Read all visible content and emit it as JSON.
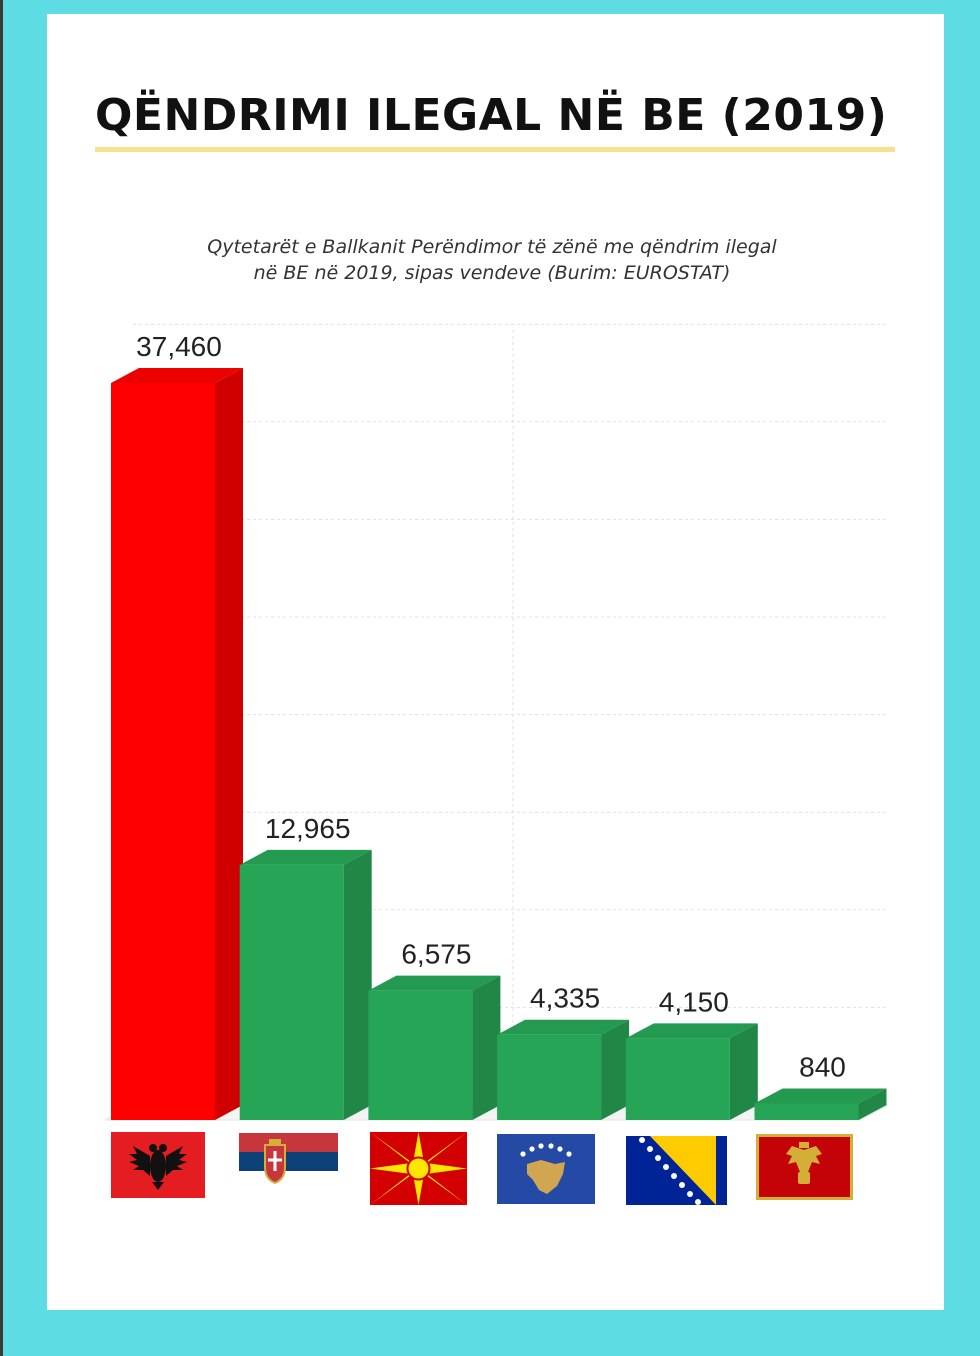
{
  "page": {
    "title": "QËNDRIMI ILEGAL NË BE (2019)",
    "subtitle_line1": "Qytetarët e Ballkanit Perëndimor të zënë me qëndrim ilegal",
    "subtitle_line2": "në BE në 2019, sipas vendeve (Burim: EUROSTAT)"
  },
  "colors": {
    "background": "#5ddde3",
    "card": "#ffffff",
    "title_underline": "#f7e08f",
    "bar_highlight": "#ff0000",
    "bar_default": "#27a556"
  },
  "chart_data": {
    "type": "bar",
    "style": "3d",
    "title": "Qytetarët e Ballkanit Perëndimor të zënë me qëndrim ilegal në BE në 2019, sipas vendeve (Burim: EUROSTAT)",
    "categories": [
      "Albania",
      "Serbia",
      "North Macedonia",
      "Kosovo",
      "Bosnia and Herzegovina",
      "Montenegro"
    ],
    "category_icons": [
      "flag-albania-icon",
      "flag-serbia-icon",
      "flag-north-macedonia-icon",
      "flag-kosovo-icon",
      "flag-bosnia-icon",
      "flag-montenegro-icon"
    ],
    "values": [
      37460,
      12965,
      6575,
      4335,
      4150,
      840
    ],
    "data_labels": [
      "37,460",
      "12,965",
      "6,575",
      "4,335",
      "4,150",
      "840"
    ],
    "bar_colors": [
      "#ff0000",
      "#27a556",
      "#27a556",
      "#27a556",
      "#27a556",
      "#27a556"
    ],
    "ylim": [
      0,
      40000
    ],
    "grid": true,
    "xlabel": "",
    "ylabel": ""
  }
}
